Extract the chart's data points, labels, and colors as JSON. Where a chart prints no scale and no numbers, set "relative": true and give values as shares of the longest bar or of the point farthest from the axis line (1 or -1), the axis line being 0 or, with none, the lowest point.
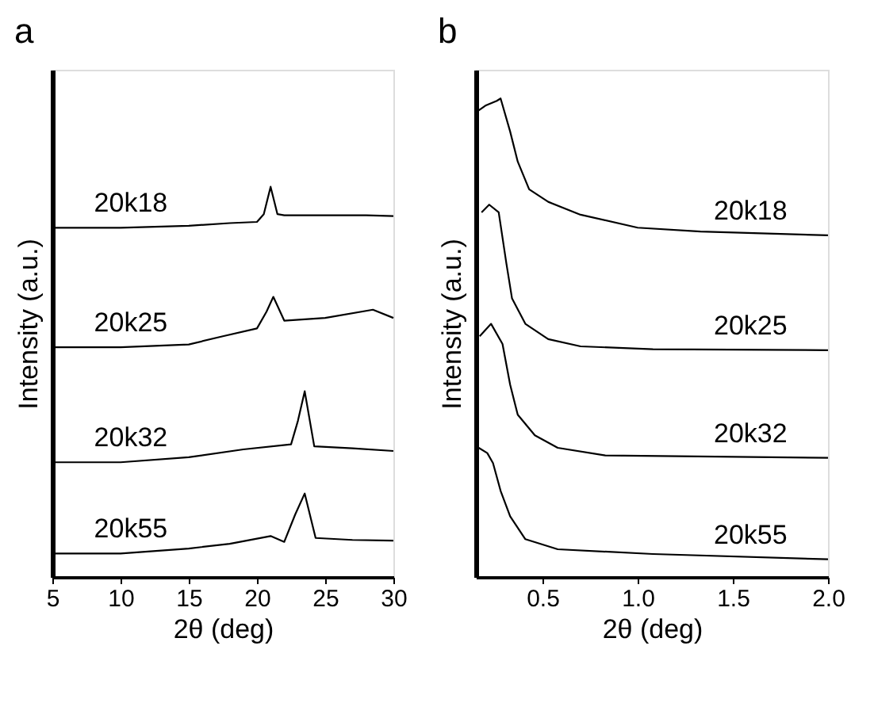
{
  "chart_data": [
    {
      "type": "line",
      "title": "a",
      "xlabel": "2θ (deg)",
      "ylabel": "Intensity (a.u.)",
      "relative": true,
      "xlim": [
        5,
        30
      ],
      "xticks": [
        5,
        10,
        15,
        20,
        25,
        30
      ],
      "tick_labels": "x",
      "grid": false,
      "legend": false,
      "marker": "none",
      "line_style": "solid",
      "series": [
        {
          "name": "20k18",
          "color": "#000000",
          "x": [
            5,
            10,
            15,
            18,
            20,
            20.5,
            21,
            21.5,
            22,
            25,
            28,
            30
          ],
          "values": [
            0.895,
            0.895,
            0.9,
            0.907,
            0.91,
            0.93,
            1.0,
            0.93,
            0.927,
            0.927,
            0.927,
            0.925
          ]
        },
        {
          "name": "20k25",
          "color": "#000000",
          "x": [
            5,
            10,
            15,
            17.5,
            20,
            20.7,
            21.2,
            22,
            25,
            28.5,
            30
          ],
          "values": [
            0.589,
            0.589,
            0.596,
            0.617,
            0.637,
            0.68,
            0.718,
            0.657,
            0.664,
            0.685,
            0.664
          ]
        },
        {
          "name": "20k32",
          "color": "#000000",
          "x": [
            5,
            10,
            15,
            19,
            22.5,
            23,
            23.5,
            24.2,
            27,
            30
          ],
          "values": [
            0.294,
            0.294,
            0.307,
            0.327,
            0.34,
            0.4,
            0.476,
            0.335,
            0.33,
            0.323
          ]
        },
        {
          "name": "20k55",
          "color": "#000000",
          "x": [
            5,
            10,
            15,
            18,
            21,
            22,
            22.8,
            23.5,
            24.3,
            27,
            30
          ],
          "values": [
            0.06,
            0.06,
            0.073,
            0.085,
            0.105,
            0.09,
            0.16,
            0.214,
            0.1,
            0.095,
            0.093
          ]
        }
      ]
    },
    {
      "type": "line",
      "title": "b",
      "xlabel": "2θ (deg)",
      "ylabel": "Intensity (a.u.)",
      "relative": true,
      "xlim": [
        0.15,
        2.0
      ],
      "xticks": [
        {
          "value": 0.5,
          "label": "0.5"
        },
        {
          "value": 1,
          "label": "1.0"
        },
        {
          "value": 1.5,
          "label": "1.5"
        },
        {
          "value": 2,
          "label": "2.0"
        }
      ],
      "tick_labels": "x",
      "grid": false,
      "legend": false,
      "marker": "none",
      "line_style": "solid",
      "series": [
        {
          "name": "20k18",
          "color": "#000000",
          "x": [
            0.157,
            0.2,
            0.26,
            0.28,
            0.33,
            0.37,
            0.43,
            0.53,
            0.7,
            1.0,
            1.33,
            2.0
          ],
          "values": [
            0.973,
            0.985,
            0.995,
            1.0,
            0.931,
            0.868,
            0.81,
            0.784,
            0.757,
            0.73,
            0.722,
            0.714
          ]
        },
        {
          "name": "20k25",
          "color": "#000000",
          "x": [
            0.18,
            0.22,
            0.27,
            0.31,
            0.34,
            0.41,
            0.53,
            0.7,
            1.08,
            2.0
          ],
          "values": [
            0.762,
            0.778,
            0.762,
            0.656,
            0.582,
            0.529,
            0.497,
            0.482,
            0.476,
            0.474
          ]
        },
        {
          "name": "20k32",
          "color": "#000000",
          "x": [
            0.17,
            0.23,
            0.29,
            0.33,
            0.37,
            0.46,
            0.58,
            0.83,
            2.0
          ],
          "values": [
            0.503,
            0.529,
            0.487,
            0.402,
            0.339,
            0.296,
            0.27,
            0.254,
            0.249
          ]
        },
        {
          "name": "20k55",
          "color": "#000000",
          "x": [
            0.165,
            0.21,
            0.24,
            0.28,
            0.33,
            0.41,
            0.58,
            1.08,
            2.0
          ],
          "values": [
            0.27,
            0.259,
            0.238,
            0.18,
            0.127,
            0.079,
            0.058,
            0.048,
            0.037
          ]
        }
      ]
    }
  ]
}
